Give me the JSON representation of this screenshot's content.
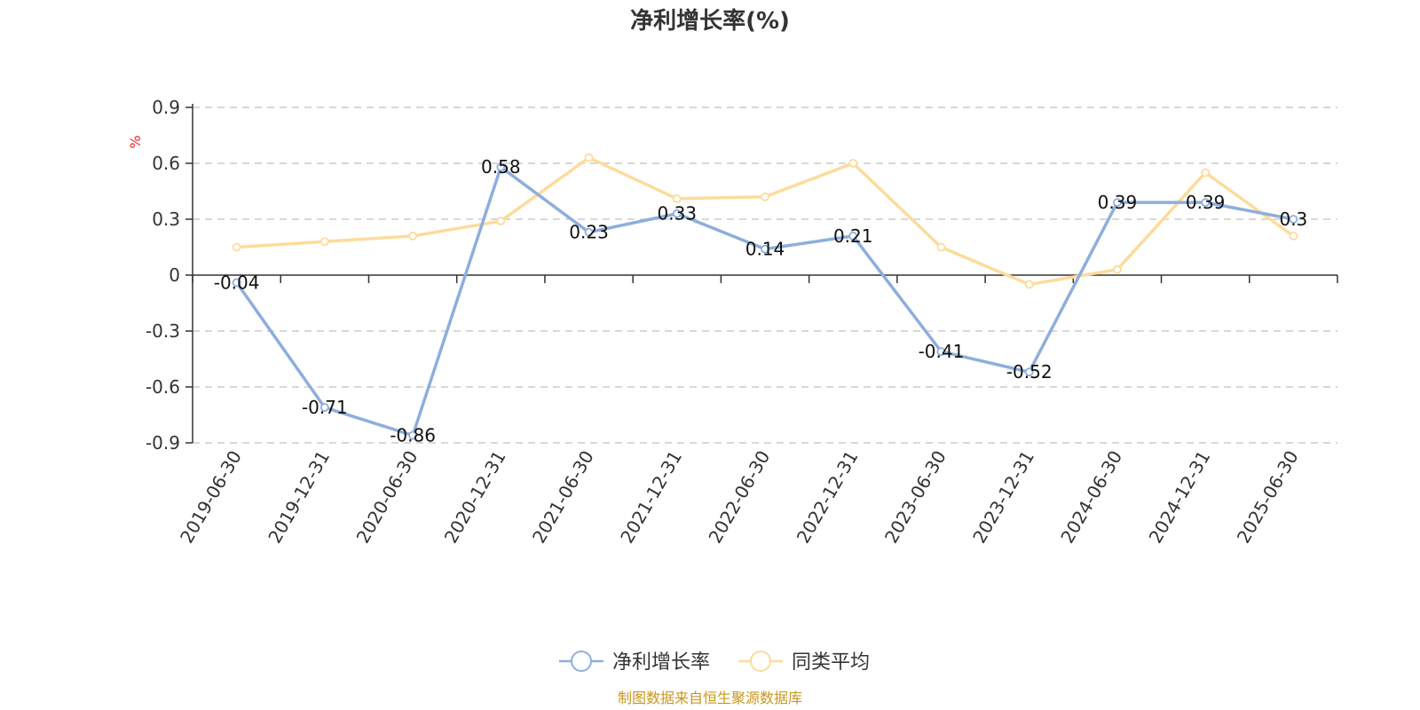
{
  "chart_data": {
    "type": "line",
    "title": "净利增长率(%)",
    "ylabel": "%",
    "xlabel": "",
    "ylim": [
      -0.9,
      0.9
    ],
    "yticks": [
      0.9,
      0.6,
      0.3,
      0,
      -0.3,
      -0.6,
      -0.9
    ],
    "categories": [
      "2019-06-30",
      "2019-12-31",
      "2020-06-30",
      "2020-12-31",
      "2021-06-30",
      "2021-12-31",
      "2022-06-30",
      "2022-12-31",
      "2023-06-30",
      "2023-12-31",
      "2024-06-30",
      "2024-12-31",
      "2025-06-30"
    ],
    "series": [
      {
        "name": "净利增长率",
        "color": "#8eaedc",
        "show_labels": true,
        "values": [
          -0.04,
          -0.71,
          -0.86,
          0.58,
          0.23,
          0.33,
          0.14,
          0.21,
          -0.41,
          -0.52,
          0.39,
          0.39,
          0.3
        ]
      },
      {
        "name": "同类平均",
        "color": "#fddb9a",
        "show_labels": false,
        "values": [
          0.15,
          0.18,
          0.21,
          0.29,
          0.63,
          0.41,
          0.42,
          0.6,
          0.15,
          -0.05,
          0.03,
          0.55,
          0.21
        ]
      }
    ],
    "grid": true,
    "legend_position": "bottom"
  },
  "source_note": "制图数据来自恒生聚源数据库"
}
